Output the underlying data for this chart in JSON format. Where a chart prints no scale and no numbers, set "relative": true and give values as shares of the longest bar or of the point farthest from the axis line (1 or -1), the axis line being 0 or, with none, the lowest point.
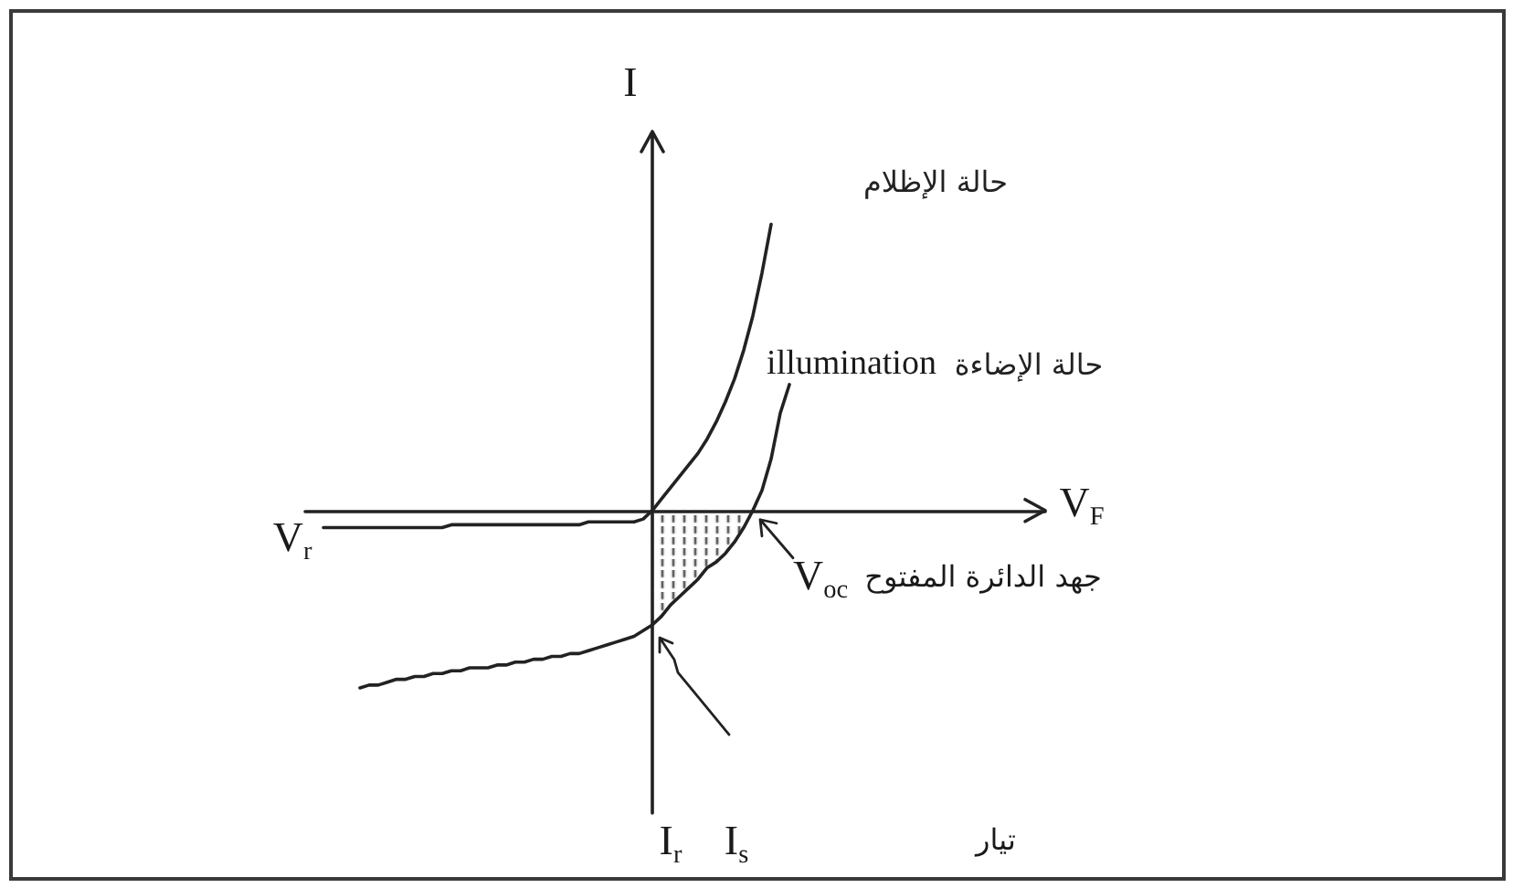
{
  "chart_data": {
    "type": "line",
    "relative": true,
    "xlabel": "V$_{F}$",
    "ylabel": "I",
    "marker": "none",
    "line_style": "solid",
    "annotations": [
      "V$_{r}$",
      "V$_{oc}$",
      "جهد الدائرة المفتوح",
      "I$_{r}$",
      "I$_{s}$",
      "تيار",
      "illumination"
    ],
    "categories": [
      null,
      null,
      null,
      null,
      null,
      null,
      null,
      null,
      null,
      null,
      null,
      null,
      null,
      null,
      null,
      null,
      null,
      null,
      null,
      null,
      null,
      null,
      null,
      null,
      null,
      null,
      null,
      null,
      null,
      null,
      null,
      null,
      null,
      null,
      null,
      null,
      null,
      null,
      null,
      null,
      null,
      null,
      null,
      null,
      null,
      null,
      null,
      null,
      null,
      null,
      null,
      null,
      null,
      null,
      null,
      null,
      null,
      null,
      null,
      null,
      null,
      null,
      null,
      null,
      null,
      null,
      null,
      null,
      null,
      null,
      null,
      null,
      null,
      null,
      null,
      null,
      null,
      null,
      null,
      null,
      null,
      null
    ],
    "series": [
      {
        "name": "حالة الإظلام",
        "color": "#222222",
        "values": [
          null,
          null,
          -0.06,
          -0.06,
          -0.06,
          -0.06,
          -0.06,
          -0.06,
          -0.06,
          -0.06,
          -0.06,
          -0.06,
          -0.06,
          -0.06,
          -0.06,
          -0.06,
          -0.05,
          -0.05,
          -0.05,
          -0.05,
          -0.05,
          -0.05,
          -0.05,
          -0.05,
          -0.05,
          -0.05,
          -0.05,
          -0.05,
          -0.05,
          -0.05,
          -0.05,
          -0.04,
          -0.04,
          -0.04,
          -0.04,
          -0.04,
          -0.04,
          -0.03,
          0,
          0.04,
          0.08,
          0.12,
          0.16,
          0.2,
          0.25,
          0.31,
          0.38,
          0.46,
          0.56,
          0.68,
          0.83,
          1,
          null,
          null,
          null,
          null,
          null,
          null,
          null,
          null,
          null,
          null,
          null,
          null,
          null,
          null,
          null,
          null,
          null,
          null,
          null,
          null,
          null,
          null,
          null,
          null,
          null,
          null,
          null,
          null,
          null,
          null
        ]
      },
      {
        "name": "حالة الإضاءة",
        "color": "#222222",
        "values": [
          null,
          null,
          null,
          null,
          null,
          null,
          -0.62,
          -0.61,
          -0.61,
          -0.6,
          -0.59,
          -0.59,
          -0.58,
          -0.58,
          -0.57,
          -0.57,
          -0.56,
          -0.56,
          -0.55,
          -0.55,
          -0.55,
          -0.54,
          -0.54,
          -0.53,
          -0.53,
          -0.52,
          -0.52,
          -0.51,
          -0.51,
          -0.5,
          -0.5,
          -0.49,
          -0.48,
          -0.47,
          -0.46,
          -0.45,
          -0.44,
          -0.42,
          -0.4,
          -0.37,
          -0.33,
          -0.3,
          -0.27,
          -0.24,
          -0.2,
          -0.18,
          -0.15,
          -0.11,
          -0.06,
          0,
          0.07,
          0.18,
          0.34,
          0.44,
          null,
          null,
          null,
          null,
          null,
          null,
          null,
          null,
          null,
          null,
          null,
          null,
          null,
          null,
          null,
          null,
          null,
          null,
          null,
          null,
          null,
          null,
          null,
          null,
          null,
          null,
          null,
          null
        ]
      },
      {
        "type": "area",
        "color": "#333333",
        "values": [
          null,
          null,
          null,
          null,
          null,
          null,
          null,
          null,
          null,
          null,
          null,
          null,
          null,
          null,
          null,
          null,
          null,
          null,
          null,
          null,
          null,
          null,
          null,
          null,
          null,
          null,
          null,
          null,
          null,
          null,
          null,
          null,
          null,
          null,
          null,
          null,
          null,
          null,
          -0.4,
          -0.37,
          -0.33,
          -0.3,
          -0.27,
          -0.24,
          -0.2,
          -0.18,
          -0.15,
          -0.11,
          -0.06,
          0,
          null,
          null,
          null,
          null,
          null,
          null,
          null,
          null,
          null,
          null,
          null,
          null,
          null,
          null,
          null,
          null,
          null,
          null,
          null,
          null,
          null,
          null,
          null,
          null,
          null,
          null,
          null,
          null,
          null,
          null,
          null,
          null
        ]
      }
    ]
  }
}
